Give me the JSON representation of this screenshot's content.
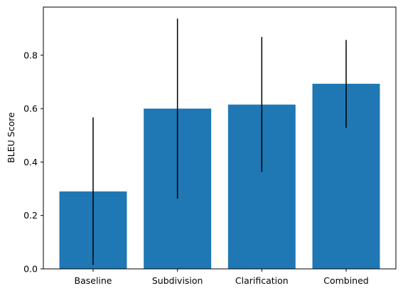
{
  "chart_data": {
    "type": "bar",
    "categories": [
      "Baseline",
      "Subdivision",
      "Clarification",
      "Combined"
    ],
    "values": [
      0.29,
      0.6,
      0.615,
      0.693
    ],
    "error_low": [
      0.015,
      0.263,
      0.363,
      0.528
    ],
    "error_high": [
      0.567,
      0.937,
      0.868,
      0.857
    ],
    "ylabel": "BLEU Score",
    "xlabel": "",
    "ylim": [
      0,
      0.98
    ],
    "yticks": [
      0.0,
      0.2,
      0.4,
      0.6,
      0.8
    ],
    "ytick_labels": [
      "0.0",
      "0.2",
      "0.4",
      "0.6",
      "0.8"
    ],
    "grid": false,
    "bar_color": "#1f77b4",
    "error_color": "#000000"
  }
}
